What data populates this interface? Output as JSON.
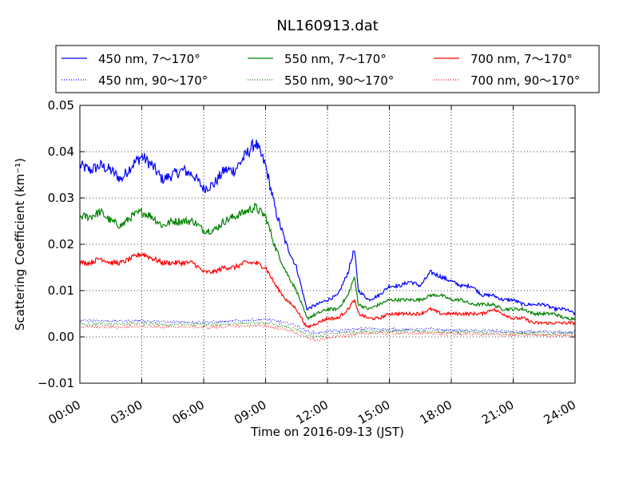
{
  "chart_data": {
    "type": "line",
    "title": "NL160913.dat",
    "xlabel": "Time on 2016-09-13 (JST)",
    "ylabel": "Scattering Coefficient (km⁻¹)",
    "xlim": [
      0,
      24
    ],
    "ylim": [
      -0.01,
      0.05
    ],
    "xticks": [
      0,
      3,
      6,
      9,
      12,
      15,
      18,
      21,
      24
    ],
    "xtick_labels": [
      "00:00",
      "03:00",
      "06:00",
      "09:00",
      "12:00",
      "15:00",
      "18:00",
      "21:00",
      "24:00"
    ],
    "yticks": [
      -0.01,
      0.0,
      0.01,
      0.02,
      0.03,
      0.04,
      0.05
    ],
    "ytick_labels": [
      "−0.01",
      "0.00",
      "0.01",
      "0.02",
      "0.03",
      "0.04",
      "0.05"
    ],
    "grid": true,
    "legend_position": "top, above plot",
    "legend": {
      "cols": 3
    },
    "series": [
      {
        "name": "450 nm, 7～170°",
        "color": "#0000ff",
        "style": "solid",
        "x": [
          0,
          0.5,
          1,
          1.5,
          2,
          2.5,
          3,
          3.5,
          4,
          4.5,
          5,
          5.5,
          6,
          6.5,
          7,
          7.5,
          8,
          8.5,
          9,
          9.5,
          10,
          10.5,
          11,
          11.5,
          12,
          12.5,
          13,
          13.3,
          13.5,
          14,
          14.5,
          15,
          15.5,
          16,
          16.5,
          17,
          17.5,
          18,
          18.5,
          19,
          19.5,
          20,
          20.5,
          21,
          21.5,
          22,
          22.5,
          23,
          23.5,
          24
        ],
        "y": [
          0.037,
          0.036,
          0.037,
          0.036,
          0.034,
          0.037,
          0.039,
          0.037,
          0.034,
          0.035,
          0.036,
          0.035,
          0.032,
          0.033,
          0.036,
          0.036,
          0.039,
          0.042,
          0.037,
          0.027,
          0.02,
          0.015,
          0.006,
          0.007,
          0.008,
          0.009,
          0.014,
          0.019,
          0.01,
          0.008,
          0.009,
          0.011,
          0.011,
          0.012,
          0.011,
          0.014,
          0.013,
          0.012,
          0.011,
          0.011,
          0.009,
          0.009,
          0.008,
          0.008,
          0.007,
          0.007,
          0.007,
          0.006,
          0.006,
          0.005
        ]
      },
      {
        "name": "550 nm, 7～170°",
        "color": "#008000",
        "style": "solid",
        "x": [
          0,
          0.5,
          1,
          1.5,
          2,
          2.5,
          3,
          3.5,
          4,
          4.5,
          5,
          5.5,
          6,
          6.5,
          7,
          7.5,
          8,
          8.5,
          9,
          9.5,
          10,
          10.5,
          11,
          11.5,
          12,
          12.5,
          13,
          13.3,
          13.5,
          14,
          14.5,
          15,
          15.5,
          16,
          16.5,
          17,
          17.5,
          18,
          18.5,
          19,
          19.5,
          20,
          20.5,
          21,
          21.5,
          22,
          22.5,
          23,
          23.5,
          24
        ],
        "y": [
          0.026,
          0.026,
          0.027,
          0.025,
          0.024,
          0.026,
          0.027,
          0.026,
          0.024,
          0.025,
          0.025,
          0.025,
          0.023,
          0.023,
          0.025,
          0.026,
          0.027,
          0.028,
          0.026,
          0.019,
          0.014,
          0.01,
          0.004,
          0.005,
          0.006,
          0.006,
          0.009,
          0.013,
          0.007,
          0.006,
          0.007,
          0.008,
          0.008,
          0.008,
          0.008,
          0.009,
          0.009,
          0.008,
          0.008,
          0.007,
          0.007,
          0.007,
          0.006,
          0.006,
          0.006,
          0.005,
          0.005,
          0.005,
          0.004,
          0.004
        ]
      },
      {
        "name": "700 nm, 7～170°",
        "color": "#ff0000",
        "style": "solid",
        "x": [
          0,
          0.5,
          1,
          1.5,
          2,
          2.5,
          3,
          3.5,
          4,
          4.5,
          5,
          5.5,
          6,
          6.5,
          7,
          7.5,
          8,
          8.5,
          9,
          9.5,
          10,
          10.5,
          11,
          11.5,
          12,
          12.5,
          13,
          13.3,
          13.5,
          14,
          14.5,
          15,
          15.5,
          16,
          16.5,
          17,
          17.5,
          18,
          18.5,
          19,
          19.5,
          20,
          20.5,
          21,
          21.5,
          22,
          22.5,
          23,
          23.5,
          24
        ],
        "y": [
          0.016,
          0.016,
          0.017,
          0.016,
          0.016,
          0.017,
          0.018,
          0.017,
          0.016,
          0.016,
          0.016,
          0.016,
          0.014,
          0.014,
          0.015,
          0.015,
          0.016,
          0.016,
          0.015,
          0.011,
          0.008,
          0.006,
          0.002,
          0.003,
          0.004,
          0.004,
          0.006,
          0.008,
          0.005,
          0.004,
          0.004,
          0.005,
          0.005,
          0.005,
          0.005,
          0.006,
          0.005,
          0.005,
          0.005,
          0.005,
          0.005,
          0.006,
          0.005,
          0.004,
          0.004,
          0.003,
          0.003,
          0.003,
          0.003,
          0.003
        ]
      },
      {
        "name": "450 nm, 90～170°",
        "color": "#0000ff",
        "style": "dotted",
        "x": [
          0,
          1,
          2,
          3,
          4,
          5,
          6,
          7,
          8,
          9,
          10,
          10.5,
          11,
          11.5,
          12,
          13,
          14,
          15,
          16,
          17,
          18,
          19,
          20,
          21,
          22,
          23,
          24
        ],
        "y": [
          0.0035,
          0.0035,
          0.0034,
          0.0035,
          0.0032,
          0.0033,
          0.0032,
          0.0033,
          0.0036,
          0.0038,
          0.003,
          0.0025,
          0.0012,
          0.0008,
          0.0012,
          0.0015,
          0.0018,
          0.0016,
          0.0016,
          0.0017,
          0.0014,
          0.0014,
          0.0013,
          0.0011,
          0.0011,
          0.001,
          0.001
        ]
      },
      {
        "name": "550 nm, 90～170°",
        "color": "#008000",
        "style": "dotted",
        "x": [
          0,
          1,
          2,
          3,
          4,
          5,
          6,
          7,
          8,
          9,
          10,
          10.5,
          11,
          11.5,
          12,
          13,
          14,
          15,
          16,
          17,
          18,
          19,
          20,
          21,
          22,
          23,
          24
        ],
        "y": [
          0.0028,
          0.0028,
          0.0027,
          0.0029,
          0.0026,
          0.0027,
          0.0026,
          0.0027,
          0.003,
          0.003,
          0.0022,
          0.0015,
          0.0005,
          0.0,
          0.0006,
          0.001,
          0.0012,
          0.0012,
          0.0012,
          0.0012,
          0.001,
          0.001,
          0.0009,
          0.0008,
          0.0008,
          0.0007,
          0.0007
        ]
      },
      {
        "name": "700 nm, 90～170°",
        "color": "#ff0000",
        "style": "dotted",
        "x": [
          0,
          1,
          2,
          3,
          4,
          5,
          6,
          7,
          8,
          9,
          10,
          10.5,
          11,
          11.5,
          12,
          13,
          14,
          15,
          16,
          17,
          18,
          19,
          20,
          21,
          22,
          23,
          24
        ],
        "y": [
          0.0022,
          0.0022,
          0.0021,
          0.0024,
          0.0021,
          0.0022,
          0.0021,
          0.0022,
          0.0024,
          0.0024,
          0.0016,
          0.0008,
          -0.0002,
          -0.0008,
          -0.0002,
          0.0004,
          0.0008,
          0.0008,
          0.0008,
          0.0008,
          0.0006,
          0.0006,
          0.0005,
          0.0004,
          0.0004,
          0.0003,
          0.0003
        ]
      }
    ]
  }
}
